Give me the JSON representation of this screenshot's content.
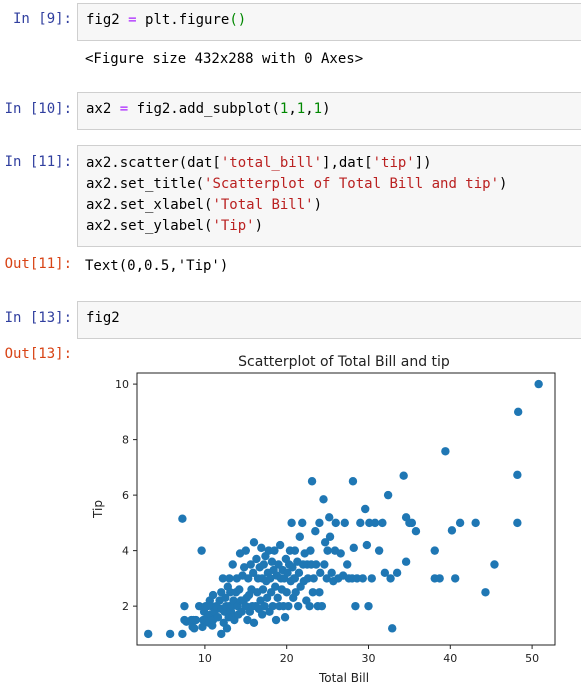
{
  "cells": [
    {
      "prompt_in": "In [9]:",
      "code_tokens": [
        [
          "fig2 ",
          ""
        ],
        [
          "=",
          "op"
        ],
        [
          " plt.figure",
          ""
        ],
        [
          "()",
          "par"
        ]
      ],
      "output": "<Figure size 432x288 with 0 Axes>"
    },
    {
      "prompt_in": "In [10]:",
      "code_tokens": [
        [
          "ax2 ",
          ""
        ],
        [
          "=",
          "op"
        ],
        [
          " fig2.add_subplot(",
          ""
        ],
        [
          "1",
          "num"
        ],
        [
          ",",
          ""
        ],
        [
          "1",
          "num"
        ],
        [
          ",",
          ""
        ],
        [
          "1",
          "num"
        ],
        [
          ")",
          ""
        ]
      ]
    },
    {
      "prompt_in": "In [11]:",
      "code_lines": [
        [
          [
            "ax2.scatter(dat[",
            ""
          ],
          [
            "'total_bill'",
            "str"
          ],
          [
            "],dat[",
            ""
          ],
          [
            "'tip'",
            "str"
          ],
          [
            "])",
            ""
          ]
        ],
        [
          [
            "ax2.set_title(",
            ""
          ],
          [
            "'Scatterplot of Total Bill and tip'",
            "str"
          ],
          [
            ")",
            ""
          ]
        ],
        [
          [
            "ax2.set_xlabel(",
            ""
          ],
          [
            "'Total Bill'",
            "str"
          ],
          [
            ")",
            ""
          ]
        ],
        [
          [
            "ax2.set_ylabel(",
            ""
          ],
          [
            "'Tip'",
            "str"
          ],
          [
            ")",
            ""
          ]
        ]
      ],
      "prompt_out": "Out[11]:",
      "output": "Text(0,0.5,'Tip')"
    },
    {
      "prompt_in": "In [13]:",
      "code_tokens": [
        [
          "fig2",
          ""
        ]
      ],
      "prompt_out": "Out[13]:"
    }
  ],
  "chart_data": {
    "type": "scatter",
    "title": "Scatterplot of Total Bill and tip",
    "xlabel": "Total Bill",
    "ylabel": "Tip",
    "xlim": [
      1.7,
      52.8
    ],
    "ylim": [
      0.6,
      10.4
    ],
    "xticks": [
      10,
      20,
      30,
      40,
      50
    ],
    "yticks": [
      2,
      4,
      6,
      8,
      10
    ],
    "color": "#1f77b4",
    "points": [
      [
        3.07,
        1.0
      ],
      [
        5.75,
        1.0
      ],
      [
        7.25,
        1.0
      ],
      [
        7.25,
        5.15
      ],
      [
        7.5,
        1.5
      ],
      [
        7.5,
        2.0
      ],
      [
        7.74,
        1.44
      ],
      [
        8.35,
        1.5
      ],
      [
        8.5,
        1.25
      ],
      [
        8.6,
        1.5
      ],
      [
        8.7,
        1.2
      ],
      [
        8.9,
        1.5
      ],
      [
        9.3,
        2.0
      ],
      [
        9.6,
        4.0
      ],
      [
        9.7,
        1.25
      ],
      [
        9.8,
        1.5
      ],
      [
        9.9,
        1.8
      ],
      [
        10.0,
        1.5
      ],
      [
        10.1,
        2.0
      ],
      [
        10.3,
        1.6
      ],
      [
        10.3,
        2.0
      ],
      [
        10.5,
        1.4
      ],
      [
        10.6,
        1.6
      ],
      [
        10.6,
        2.2
      ],
      [
        10.7,
        1.7
      ],
      [
        10.8,
        2.0
      ],
      [
        10.9,
        1.3
      ],
      [
        11.0,
        2.4
      ],
      [
        11.0,
        1.5
      ],
      [
        11.2,
        1.8
      ],
      [
        11.4,
        2.0
      ],
      [
        11.6,
        1.6
      ],
      [
        11.8,
        2.2
      ],
      [
        12.0,
        1.9
      ],
      [
        12.0,
        2.5
      ],
      [
        12.0,
        1.0
      ],
      [
        12.2,
        3.0
      ],
      [
        12.3,
        1.4
      ],
      [
        12.4,
        1.8
      ],
      [
        12.5,
        2.3
      ],
      [
        12.6,
        2.0
      ],
      [
        12.7,
        1.2
      ],
      [
        12.8,
        2.7
      ],
      [
        12.9,
        1.6
      ],
      [
        13.0,
        2.0
      ],
      [
        13.0,
        3.0
      ],
      [
        13.1,
        2.5
      ],
      [
        13.2,
        1.8
      ],
      [
        13.3,
        2.0
      ],
      [
        13.4,
        3.5
      ],
      [
        13.4,
        1.6
      ],
      [
        13.5,
        2.2
      ],
      [
        13.6,
        1.5
      ],
      [
        13.8,
        2.5
      ],
      [
        13.9,
        3.0
      ],
      [
        14.0,
        2.0
      ],
      [
        14.1,
        1.7
      ],
      [
        14.2,
        2.6
      ],
      [
        14.3,
        3.9
      ],
      [
        14.4,
        2.2
      ],
      [
        14.5,
        1.8
      ],
      [
        14.6,
        3.1
      ],
      [
        14.7,
        2.2
      ],
      [
        14.8,
        3.4
      ],
      [
        15.0,
        2.0
      ],
      [
        15.0,
        4.0
      ],
      [
        15.1,
        2.3
      ],
      [
        15.2,
        1.5
      ],
      [
        15.3,
        3.0
      ],
      [
        15.4,
        2.4
      ],
      [
        15.5,
        1.8
      ],
      [
        15.6,
        3.5
      ],
      [
        15.7,
        2.6
      ],
      [
        15.8,
        2.0
      ],
      [
        15.9,
        3.2
      ],
      [
        16.0,
        1.4
      ],
      [
        16.0,
        4.3
      ],
      [
        16.2,
        2.0
      ],
      [
        16.3,
        3.7
      ],
      [
        16.4,
        2.5
      ],
      [
        16.5,
        3.0
      ],
      [
        16.6,
        1.9
      ],
      [
        16.7,
        3.4
      ],
      [
        16.8,
        2.2
      ],
      [
        16.9,
        4.1
      ],
      [
        17.0,
        3.0
      ],
      [
        17.0,
        1.7
      ],
      [
        17.1,
        2.6
      ],
      [
        17.2,
        3.5
      ],
      [
        17.3,
        2.0
      ],
      [
        17.4,
        3.8
      ],
      [
        17.5,
        2.9
      ],
      [
        17.6,
        2.3
      ],
      [
        17.7,
        3.2
      ],
      [
        17.8,
        4.0
      ],
      [
        17.9,
        1.8
      ],
      [
        18.0,
        3.0
      ],
      [
        18.1,
        2.5
      ],
      [
        18.2,
        3.6
      ],
      [
        18.3,
        2.0
      ],
      [
        18.4,
        3.3
      ],
      [
        18.5,
        4.0
      ],
      [
        18.6,
        2.7
      ],
      [
        18.7,
        1.5
      ],
      [
        18.8,
        3.1
      ],
      [
        18.9,
        2.3
      ],
      [
        19.0,
        3.5
      ],
      [
        19.1,
        2.0
      ],
      [
        19.2,
        4.2
      ],
      [
        19.3,
        3.0
      ],
      [
        19.4,
        2.6
      ],
      [
        19.5,
        3.3
      ],
      [
        19.6,
        2.0
      ],
      [
        19.7,
        3.0
      ],
      [
        19.8,
        1.6
      ],
      [
        19.9,
        3.7
      ],
      [
        20.0,
        2.5
      ],
      [
        20.1,
        3.2
      ],
      [
        20.2,
        2.0
      ],
      [
        20.3,
        3.5
      ],
      [
        20.4,
        4.0
      ],
      [
        20.5,
        2.9
      ],
      [
        20.6,
        5.0
      ],
      [
        20.7,
        3.4
      ],
      [
        20.8,
        2.3
      ],
      [
        20.9,
        3.0
      ],
      [
        21.0,
        4.0
      ],
      [
        21.0,
        3.0
      ],
      [
        21.1,
        2.5
      ],
      [
        21.3,
        3.6
      ],
      [
        21.4,
        2.0
      ],
      [
        21.5,
        3.2
      ],
      [
        21.6,
        4.5
      ],
      [
        21.7,
        2.7
      ],
      [
        21.9,
        5.0
      ],
      [
        22.0,
        3.5
      ],
      [
        22.1,
        2.9
      ],
      [
        22.2,
        3.9
      ],
      [
        22.4,
        2.2
      ],
      [
        22.5,
        3.5
      ],
      [
        22.6,
        3.0
      ],
      [
        22.8,
        2.0
      ],
      [
        22.9,
        4.0
      ],
      [
        23.0,
        3.5
      ],
      [
        23.1,
        6.5
      ],
      [
        23.2,
        2.5
      ],
      [
        23.3,
        3.0
      ],
      [
        23.5,
        4.7
      ],
      [
        23.6,
        3.5
      ],
      [
        23.8,
        2.0
      ],
      [
        24.0,
        2.5
      ],
      [
        24.0,
        5.0
      ],
      [
        24.1,
        3.2
      ],
      [
        24.3,
        2.0
      ],
      [
        24.5,
        5.85
      ],
      [
        24.6,
        3.5
      ],
      [
        24.7,
        4.3
      ],
      [
        24.9,
        3.0
      ],
      [
        25.0,
        4.0
      ],
      [
        25.2,
        5.2
      ],
      [
        25.3,
        4.5
      ],
      [
        25.5,
        3.2
      ],
      [
        25.7,
        2.9
      ],
      [
        25.9,
        4.0
      ],
      [
        26.0,
        5.0
      ],
      [
        26.3,
        3.0
      ],
      [
        26.6,
        3.9
      ],
      [
        26.9,
        3.1
      ],
      [
        27.1,
        5.0
      ],
      [
        27.4,
        3.5
      ],
      [
        27.6,
        3.0
      ],
      [
        28.0,
        3.0
      ],
      [
        28.1,
        6.5
      ],
      [
        28.2,
        4.1
      ],
      [
        28.4,
        2.0
      ],
      [
        28.6,
        3.0
      ],
      [
        29.0,
        5.0
      ],
      [
        29.3,
        3.0
      ],
      [
        29.6,
        5.5
      ],
      [
        29.8,
        4.2
      ],
      [
        30.0,
        2.0
      ],
      [
        30.1,
        5.0
      ],
      [
        30.4,
        3.0
      ],
      [
        30.8,
        5.0
      ],
      [
        31.3,
        4.0
      ],
      [
        31.7,
        5.0
      ],
      [
        32.0,
        3.2
      ],
      [
        32.4,
        6.0
      ],
      [
        32.7,
        3.0
      ],
      [
        32.9,
        1.2
      ],
      [
        33.5,
        3.2
      ],
      [
        34.3,
        6.7
      ],
      [
        34.6,
        3.6
      ],
      [
        34.6,
        5.2
      ],
      [
        35.0,
        5.0
      ],
      [
        35.3,
        5.0
      ],
      [
        35.8,
        4.7
      ],
      [
        38.1,
        4.0
      ],
      [
        38.1,
        3.0
      ],
      [
        38.7,
        3.0
      ],
      [
        39.4,
        7.58
      ],
      [
        40.2,
        4.73
      ],
      [
        40.6,
        3.0
      ],
      [
        41.2,
        5.0
      ],
      [
        43.1,
        5.0
      ],
      [
        44.3,
        2.5
      ],
      [
        45.4,
        3.5
      ],
      [
        48.2,
        5.0
      ],
      [
        48.2,
        6.73
      ],
      [
        48.3,
        9.0
      ],
      [
        50.8,
        10.0
      ]
    ]
  }
}
